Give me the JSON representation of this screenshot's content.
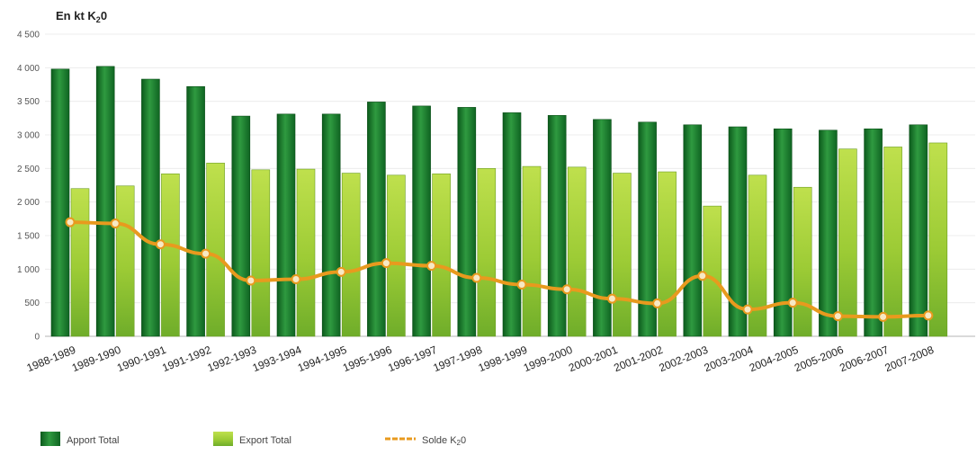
{
  "chart_data": {
    "type": "bar",
    "unit_label": "En kt K",
    "unit_sub": "2",
    "unit_suffix": "0",
    "categories": [
      "1988-1989",
      "1989-1990",
      "1990-1991",
      "1991-1992",
      "1992-1993",
      "1993-1994",
      "1994-1995",
      "1995-1996",
      "1996-1997",
      "1997-1998",
      "1998-1999",
      "1999-2000",
      "2000-2001",
      "2001-2002",
      "2002-2003",
      "2003-2004",
      "2004-2005",
      "2005-2006",
      "2006-2007",
      "2007-2008"
    ],
    "series": [
      {
        "name": "Apport Total",
        "kind": "bar",
        "color": "#1d7a2e",
        "values": [
          3980,
          4020,
          3830,
          3720,
          3280,
          3310,
          3310,
          3490,
          3430,
          3410,
          3330,
          3290,
          3230,
          3190,
          3150,
          3120,
          3090,
          3070,
          3090,
          3150
        ]
      },
      {
        "name": "Export Total",
        "kind": "bar",
        "color": "#a6cf3a",
        "values": [
          2200,
          2240,
          2420,
          2580,
          2480,
          2490,
          2430,
          2400,
          2420,
          2500,
          2530,
          2520,
          2430,
          2450,
          1940,
          2400,
          2220,
          2790,
          2820,
          2880
        ]
      },
      {
        "name": "Solde K",
        "name_sub": "2",
        "name_suffix": "0",
        "kind": "line",
        "color": "#e89a1e",
        "values": [
          1700,
          1680,
          1370,
          1230,
          830,
          850,
          960,
          1090,
          1050,
          870,
          770,
          700,
          560,
          490,
          900,
          400,
          500,
          300,
          290,
          310
        ]
      }
    ],
    "yticks": [
      "0",
      "500",
      "1 000",
      "1 500",
      "2 000",
      "2 500",
      "3 000",
      "3 500",
      "4 000",
      "4 500"
    ],
    "ylim": [
      0,
      4500
    ],
    "grid": true,
    "legend_position": "bottom-left"
  }
}
